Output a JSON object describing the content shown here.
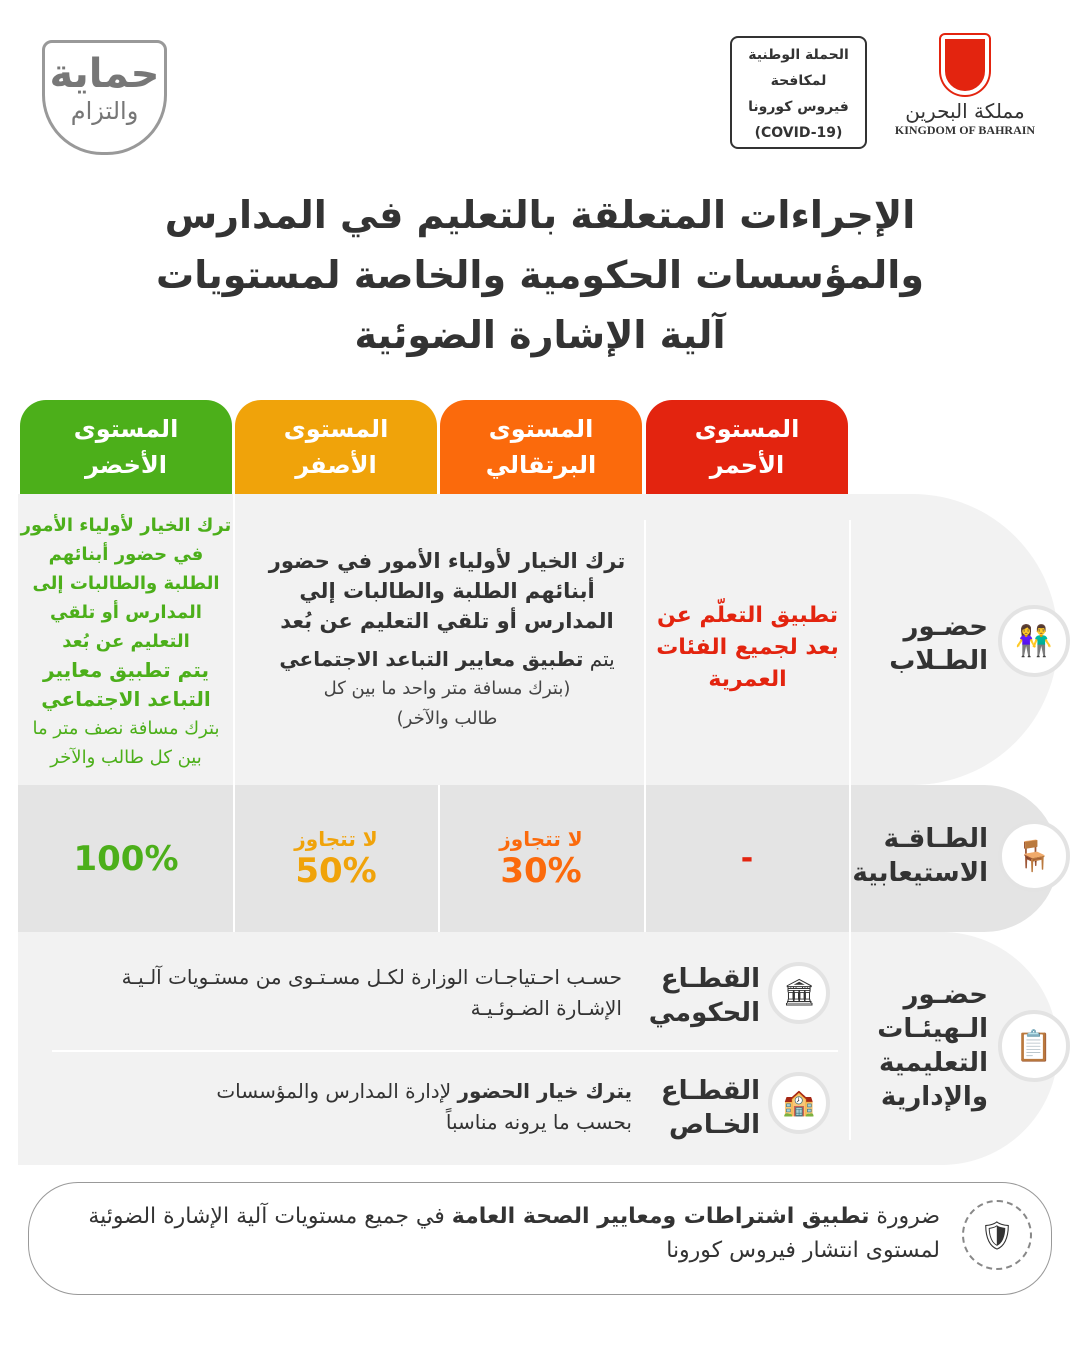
{
  "logo_left": {
    "line1": "حماية",
    "line2": "والتزام"
  },
  "campaign_box": {
    "lines": [
      "الحملة الوطنية",
      "لمكافحة",
      "فيروس كورونا",
      "(COVID-19)"
    ]
  },
  "kingdom_logo": {
    "arabic": "مملكة البحرين",
    "english": "KINGDOM OF BAHRAIN"
  },
  "title": [
    "الإجراءات المتعلقة بالتعليم في المدارس",
    "والمؤسسات الحكومية والخاصة لمستويات",
    "آلية الإشارة الضوئية"
  ],
  "colors": {
    "green": "#4caf1a",
    "yellow": "#f0a30a",
    "orange": "#fb6a0c",
    "red": "#e3240f"
  },
  "levels": [
    {
      "line1": "المستوى",
      "line2": "الأخضر"
    },
    {
      "line1": "المستوى",
      "line2": "الأصفر"
    },
    {
      "line1": "المستوى",
      "line2": "البرتقالي"
    },
    {
      "line1": "المستوى",
      "line2": "الأحمر"
    }
  ],
  "rows": {
    "students": {
      "label1": "حضـور",
      "label2": "الطـلاب",
      "icon": "students-icon",
      "green": {
        "main": "ترك الخيار لأولياء الأمور في حضور أبنائهم الطلبة والطالبات إلى المدارس أو تلقي التعليم عن بُعد",
        "rule": "يتم تطبيق معايير التباعد الاجتماعي",
        "detail": "بترك مسافة نصف متر ما بين كل طالب والآخر"
      },
      "yellow_orange": {
        "main": "ترك الخيار لأولياء الأمور في حضور أبنائهم الطلبة والطالبات إلي المدارس أو تلقي التعليم عن بُعد",
        "rule_prefix": "يتم ",
        "rule": "تطبيق معايير التباعد الاجتماعي",
        "detail": "(بترك مسافة متر واحد ما بين كل طالب والآخر)"
      },
      "red": "تطبيق التعلّم عن بعد لجميع الفئات العمرية"
    },
    "capacity": {
      "label1": "الطـاقـة",
      "label2": "الاستيعابية",
      "icon": "classroom-icon",
      "green": "100%",
      "yellow_pre": "لا تتجاوز",
      "yellow": "50%",
      "orange_pre": "لا تتجاوز",
      "orange": "30%",
      "red": "-"
    },
    "staff": {
      "label1": "حضـور",
      "label2": "الـهيئـات",
      "label3": "التعليمية",
      "label4": "والإدارية",
      "icon": "presentation-icon",
      "gov_label1": "القطـاع",
      "gov_label2": "الحكومي",
      "gov_text": "حسـب احـتياجـات الوزارة لكـل مسـتـوى من مستـويات آلـيـة الإشـارة الضـوئـيـة",
      "priv_label1": "القطـاع",
      "priv_label2": "الخـاص",
      "priv_text_bold": "يترك خيار الحضور",
      "priv_text": " لإدارة المدارس والمؤسسات بحسب ما يرونه مناسباً"
    }
  },
  "footer": {
    "pre": "ضرورة ",
    "bold": "تطبيق اشتراطات ومعايير الصحة العامة",
    "post": " في جميع مستويات آلية الإشارة الضوئية لمستوى انتشار فيروس كورونا",
    "icon": "health-shield-icon"
  }
}
